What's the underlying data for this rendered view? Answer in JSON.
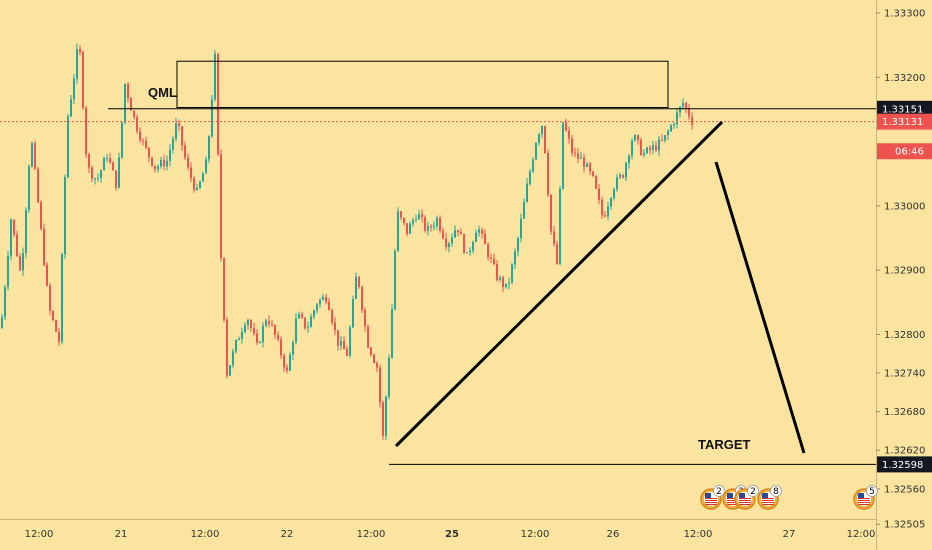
{
  "chart_data": {
    "type": "candlestick",
    "title": "",
    "price_axis": {
      "ticks": [
        "1.33300",
        "1.33200",
        "1.33151",
        "1.33131",
        "06:46",
        "1.33000",
        "1.32900",
        "1.32800",
        "1.32740",
        "1.32680",
        "1.32620",
        "1.32598",
        "1.32560",
        "1.32505"
      ],
      "ylim": [
        1.32505,
        1.3332
      ]
    },
    "time_axis": {
      "ticks": [
        "12:00",
        "21",
        "12:00",
        "22",
        "12:00",
        "25",
        "12:00",
        "26",
        "12:00",
        "27",
        "12:00"
      ]
    },
    "price_labels": [
      {
        "name": "qml-level",
        "value": 1.33151,
        "text": "1.33151",
        "style": "dark"
      },
      {
        "name": "last-price",
        "value": 1.33131,
        "text": "1.33131",
        "style": "red"
      },
      {
        "name": "countdown",
        "value": 1.33085,
        "text": "06:46",
        "style": "red"
      },
      {
        "name": "target-level",
        "value": 1.32598,
        "text": "1.32598",
        "style": "dark"
      }
    ],
    "annotations": {
      "qml_label": "QML",
      "target_label": "TARGET",
      "qml_zone": {
        "x_start": 177,
        "x_end": 668,
        "price_top": 1.33225,
        "price_bottom": 1.33153
      },
      "qml_line_price": 1.33151,
      "target_line_price": 1.32598
    },
    "events": [
      {
        "icon": "us-flag-icon",
        "count": "2"
      },
      {
        "icon": "us-flag-icon",
        "count": "3"
      },
      {
        "icon": "us-flag-icon",
        "count": "2"
      },
      {
        "icon": "us-flag-icon",
        "count": "8"
      },
      {
        "icon": "us-flag-icon",
        "count": "5"
      }
    ],
    "colors": {
      "background": "#fae4a0",
      "up": "#26a69a",
      "down": "#ef5350",
      "last_price": "#ef5350",
      "label_dark": "#131722",
      "line": "#000000"
    },
    "anchors": [
      [
        0,
        1.3281
      ],
      [
        10,
        1.3298
      ],
      [
        20,
        1.3289
      ],
      [
        30,
        1.3311
      ],
      [
        38,
        1.3299
      ],
      [
        48,
        1.3284
      ],
      [
        58,
        1.3279
      ],
      [
        66,
        1.3313
      ],
      [
        72,
        1.3319
      ],
      [
        78,
        1.3326
      ],
      [
        86,
        1.3306
      ],
      [
        96,
        1.3304
      ],
      [
        106,
        1.3308
      ],
      [
        116,
        1.3303
      ],
      [
        124,
        1.3319
      ],
      [
        134,
        1.3313
      ],
      [
        144,
        1.3309
      ],
      [
        154,
        1.3306
      ],
      [
        166,
        1.3307
      ],
      [
        176,
        1.3313
      ],
      [
        186,
        1.3306
      ],
      [
        196,
        1.3302
      ],
      [
        206,
        1.3307
      ],
      [
        214,
        1.3323
      ],
      [
        220,
        1.3292
      ],
      [
        226,
        1.3274
      ],
      [
        236,
        1.3279
      ],
      [
        246,
        1.3283
      ],
      [
        256,
        1.3278
      ],
      [
        266,
        1.3283
      ],
      [
        276,
        1.3279
      ],
      [
        286,
        1.3274
      ],
      [
        296,
        1.3283
      ],
      [
        306,
        1.3281
      ],
      [
        316,
        1.3285
      ],
      [
        326,
        1.3286
      ],
      [
        336,
        1.3279
      ],
      [
        346,
        1.3277
      ],
      [
        356,
        1.329
      ],
      [
        366,
        1.3279
      ],
      [
        376,
        1.3275
      ],
      [
        382,
        1.3264
      ],
      [
        390,
        1.3281
      ],
      [
        396,
        1.3299
      ],
      [
        406,
        1.3296
      ],
      [
        416,
        1.3299
      ],
      [
        426,
        1.3296
      ],
      [
        436,
        1.3298
      ],
      [
        446,
        1.3294
      ],
      [
        456,
        1.3297
      ],
      [
        466,
        1.3292
      ],
      [
        476,
        1.3297
      ],
      [
        486,
        1.3293
      ],
      [
        496,
        1.3289
      ],
      [
        506,
        1.3287
      ],
      [
        516,
        1.3294
      ],
      [
        526,
        1.3303
      ],
      [
        536,
        1.3311
      ],
      [
        542,
        1.3313
      ],
      [
        550,
        1.3296
      ],
      [
        556,
        1.3291
      ],
      [
        562,
        1.3313
      ],
      [
        572,
        1.3308
      ],
      [
        582,
        1.3307
      ],
      [
        592,
        1.3304
      ],
      [
        602,
        1.3298
      ],
      [
        612,
        1.3303
      ],
      [
        622,
        1.3305
      ],
      [
        632,
        1.3311
      ],
      [
        642,
        1.3308
      ],
      [
        652,
        1.3309
      ],
      [
        662,
        1.331
      ],
      [
        672,
        1.3313
      ],
      [
        682,
        1.3316
      ],
      [
        692,
        1.3313
      ]
    ]
  }
}
